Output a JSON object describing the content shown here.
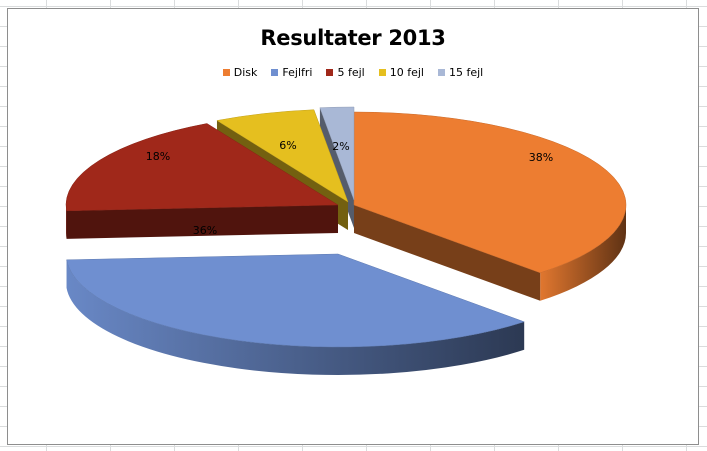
{
  "chart_data": {
    "type": "pie",
    "title": "Resultater 2013",
    "legend_position": "top",
    "categories": [
      "Disk",
      "Fejlfri",
      "5 fejl",
      "10 fejl",
      "15 fejl"
    ],
    "values": [
      38,
      36,
      18,
      6,
      2
    ],
    "labels": [
      "38%",
      "36%",
      "18%",
      "6%",
      "2%"
    ],
    "colors": [
      "#ED7D31",
      "#6F8FD0",
      "#A0281A",
      "#E5BF1F",
      "#A9B8D6"
    ],
    "style": "3d-exploded"
  }
}
